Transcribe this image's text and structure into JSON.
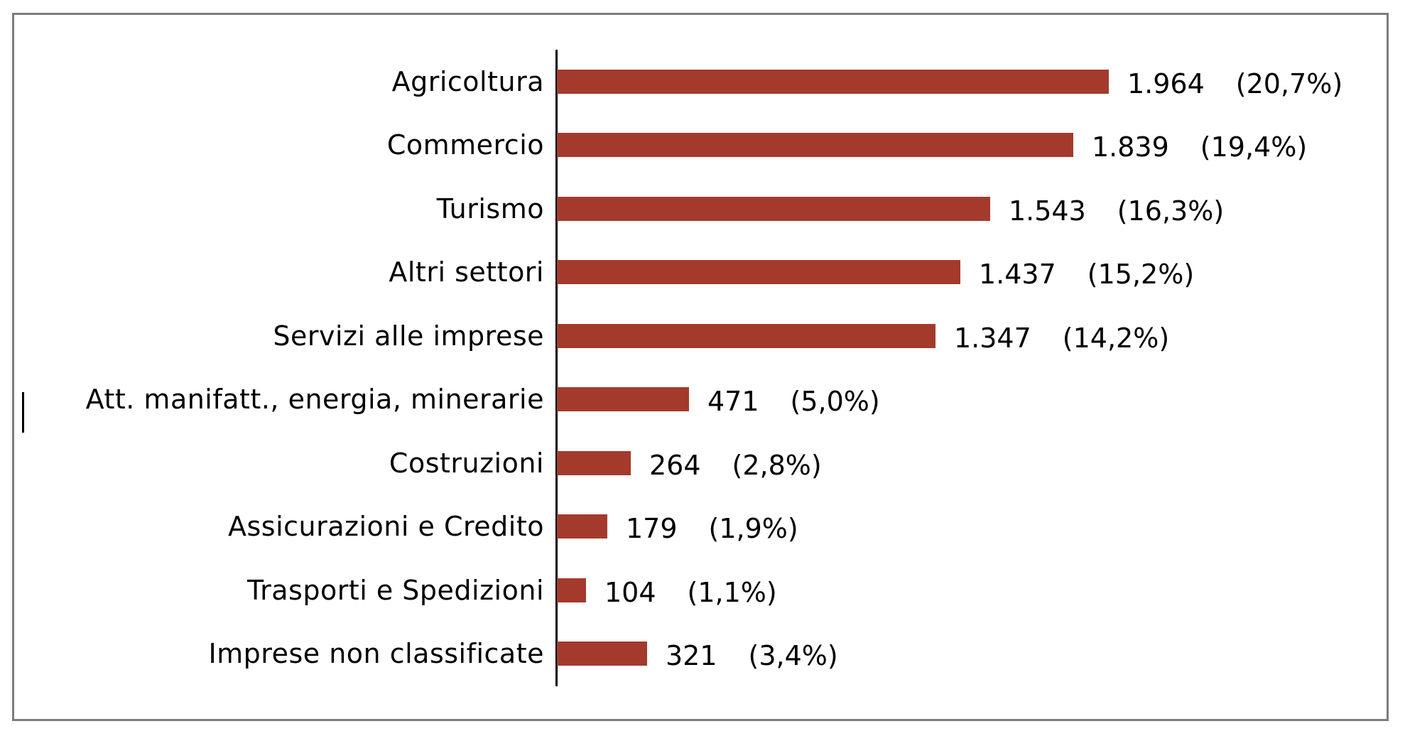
{
  "chart_data": {
    "type": "bar",
    "orientation": "horizontal",
    "title": "",
    "xlabel": "",
    "ylabel": "",
    "grid": false,
    "legend": false,
    "xlim": [
      0,
      2950
    ],
    "categories": [
      "Agricoltura",
      "Commercio",
      "Turismo",
      "Altri settori",
      "Servizi alle imprese",
      "Att. manifatt., energia, minerarie",
      "Costruzioni",
      "Assicurazioni e Credito",
      "Trasporti e Spedizioni",
      "Imprese non classificate"
    ],
    "values": [
      1964,
      1839,
      1543,
      1437,
      1347,
      471,
      264,
      179,
      104,
      321
    ],
    "value_labels": [
      "1.964",
      "1.839",
      "1.543",
      "1.437",
      "1.347",
      "471",
      "264",
      "179",
      "104",
      "321"
    ],
    "percentages": [
      20.7,
      19.4,
      16.3,
      15.2,
      14.2,
      5.0,
      2.8,
      1.9,
      1.1,
      3.4
    ],
    "pct_labels": [
      "(20,7%)",
      "(19,4%)",
      "(16,3%)",
      "(15,2%)",
      "(14,2%)",
      "(5,0%)",
      "(2,8%)",
      "(1,9%)",
      "(1,1%)",
      "(3,4%)"
    ],
    "bar_color": "#A43A2B",
    "axis_color": "#000000",
    "frame_border_color": "#7C7C7C",
    "text_color": "#000000",
    "background_color": "#FFFFFF"
  }
}
